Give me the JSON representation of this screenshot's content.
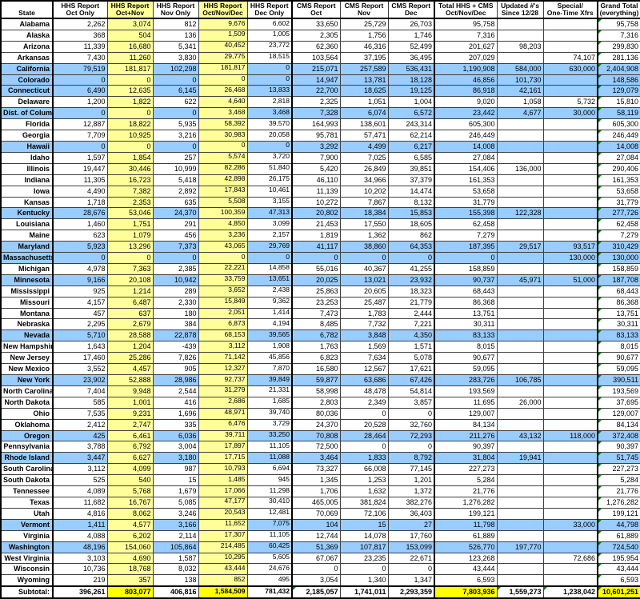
{
  "colors": {
    "pale_yellow": "#FFFF99",
    "highlight_blue": "#99CCFF",
    "subtotal_yellow": "#FFFF00",
    "error_indicator_green": "#008000"
  },
  "table": {
    "columns": [
      {
        "id": "state",
        "line1": "",
        "line2": "State"
      },
      {
        "id": "hhs_oct",
        "line1": "HHS Report",
        "line2": "Oct Only"
      },
      {
        "id": "hhs_octnov",
        "line1": "HHS Report",
        "line2": "Oct+Nov"
      },
      {
        "id": "hhs_nov",
        "line1": "HHS Report",
        "line2": "Nov Only"
      },
      {
        "id": "hhs_ond",
        "line1": "HHS Report",
        "line2": "Oct/Nov/Dec"
      },
      {
        "id": "hhs_dec",
        "line1": "HHS Report",
        "line2": "Dec Only"
      },
      {
        "id": "cms_oct",
        "line1": "CMS Report",
        "line2": "Oct"
      },
      {
        "id": "cms_nov",
        "line1": "CMS Report",
        "line2": "Nov"
      },
      {
        "id": "cms_dec",
        "line1": "CMS Report",
        "line2": "Dec"
      },
      {
        "id": "total",
        "line1": "Total HHS + CMS",
        "line2": "Oct/Nov/Dec"
      },
      {
        "id": "updated",
        "line1": "Updated #'s",
        "line2": "Since 12/28"
      },
      {
        "id": "special",
        "line1": "Special/",
        "line2": "One-Time Xfrs"
      },
      {
        "id": "grand",
        "line1": "Grand Total",
        "line2": "(everything)"
      }
    ],
    "rows": [
      {
        "state": "Alabama",
        "highlight": false,
        "values": [
          "2,262",
          "3,074",
          "812",
          "9,676",
          "6,602",
          "33,650",
          "25,729",
          "26,703",
          "95,758",
          "",
          "",
          "95,758"
        ]
      },
      {
        "state": "Alaska",
        "highlight": false,
        "values": [
          "368",
          "504",
          "136",
          "1,509",
          "1,005",
          "2,305",
          "1,756",
          "1,746",
          "7,316",
          "",
          "",
          "7,316"
        ]
      },
      {
        "state": "Arizona",
        "highlight": false,
        "values": [
          "11,339",
          "16,680",
          "5,341",
          "40,452",
          "23,772",
          "62,360",
          "46,316",
          "52,499",
          "201,627",
          "98,203",
          "",
          "299,830"
        ]
      },
      {
        "state": "Arkansas",
        "highlight": false,
        "values": [
          "7,430",
          "11,260",
          "3,830",
          "29,775",
          "18,515",
          "103,564",
          "37,195",
          "36,495",
          "207,029",
          "",
          "74,107",
          "281,136"
        ]
      },
      {
        "state": "California",
        "highlight": true,
        "values": [
          "79,519",
          "181,817",
          "102,298",
          "181,817",
          "0",
          "215,071",
          "257,589",
          "536,431",
          "1,190,908",
          "584,000",
          "630,000",
          "2,404,908"
        ]
      },
      {
        "state": "Colorado",
        "highlight": true,
        "values": [
          "0",
          "0",
          "0",
          "0",
          "0",
          "14,947",
          "13,781",
          "18,128",
          "46,856",
          "101,730",
          "",
          "148,586"
        ]
      },
      {
        "state": "Connecticut",
        "highlight": true,
        "values": [
          "6,490",
          "12,635",
          "6,145",
          "26,468",
          "13,833",
          "22,700",
          "18,625",
          "19,125",
          "86,918",
          "42,161",
          "",
          "129,079"
        ]
      },
      {
        "state": "Delaware",
        "highlight": false,
        "values": [
          "1,200",
          "1,822",
          "622",
          "4,640",
          "2,818",
          "2,325",
          "1,051",
          "1,004",
          "9,020",
          "1,058",
          "5,732",
          "15,810"
        ]
      },
      {
        "state": "Dist. of Colum.",
        "highlight": true,
        "values": [
          "0",
          "0",
          "0",
          "3,468",
          "3,468",
          "7,328",
          "6,074",
          "6,572",
          "23,442",
          "4,677",
          "30,000",
          "58,119"
        ]
      },
      {
        "state": "Florida",
        "highlight": false,
        "values": [
          "12,887",
          "18,822",
          "5,935",
          "58,392",
          "39,570",
          "164,993",
          "138,601",
          "243,314",
          "605,300",
          "",
          "",
          "605,300"
        ]
      },
      {
        "state": "Georgia",
        "highlight": false,
        "values": [
          "7,709",
          "10,925",
          "3,216",
          "30,983",
          "20,058",
          "95,781",
          "57,471",
          "62,214",
          "246,449",
          "",
          "",
          "246,449"
        ]
      },
      {
        "state": "Hawaii",
        "highlight": true,
        "values": [
          "0",
          "0",
          "0",
          "0",
          "0",
          "3,292",
          "4,499",
          "6,217",
          "14,008",
          "",
          "",
          "14,008"
        ]
      },
      {
        "state": "Idaho",
        "highlight": false,
        "values": [
          "1,597",
          "1,854",
          "257",
          "5,574",
          "3,720",
          "7,900",
          "7,025",
          "6,585",
          "27,084",
          "",
          "",
          "27,084"
        ]
      },
      {
        "state": "Illinois",
        "highlight": false,
        "values": [
          "19,447",
          "30,446",
          "10,999",
          "82,286",
          "51,840",
          "5,420",
          "26,849",
          "39,851",
          "154,406",
          "136,000",
          "",
          "290,406"
        ]
      },
      {
        "state": "Indiana",
        "highlight": false,
        "values": [
          "11,305",
          "16,723",
          "5,418",
          "42,898",
          "26,175",
          "46,110",
          "34,966",
          "37,379",
          "161,353",
          "",
          "",
          "161,353"
        ]
      },
      {
        "state": "Iowa",
        "highlight": false,
        "values": [
          "4,490",
          "7,382",
          "2,892",
          "17,843",
          "10,461",
          "11,139",
          "10,202",
          "14,474",
          "53,658",
          "",
          "",
          "53,658"
        ]
      },
      {
        "state": "Kansas",
        "highlight": false,
        "values": [
          "1,718",
          "2,353",
          "635",
          "5,508",
          "3,155",
          "10,272",
          "7,867",
          "8,132",
          "31,779",
          "",
          "",
          "31,779"
        ]
      },
      {
        "state": "Kentucky",
        "highlight": true,
        "values": [
          "28,676",
          "53,046",
          "24,370",
          "100,359",
          "47,313",
          "20,802",
          "18,384",
          "15,853",
          "155,398",
          "122,328",
          "",
          "277,726"
        ]
      },
      {
        "state": "Louisiana",
        "highlight": false,
        "values": [
          "1,460",
          "1,751",
          "291",
          "4,850",
          "3,099",
          "21,453",
          "17,550",
          "18,605",
          "62,458",
          "",
          "",
          "62,458"
        ]
      },
      {
        "state": "Maine",
        "highlight": false,
        "values": [
          "623",
          "1,079",
          "456",
          "3,236",
          "2,157",
          "1,819",
          "1,362",
          "862",
          "7,279",
          "",
          "",
          "7,279"
        ]
      },
      {
        "state": "Maryland",
        "highlight": true,
        "values": [
          "5,923",
          "13,296",
          "7,373",
          "43,065",
          "29,769",
          "41,117",
          "38,860",
          "64,353",
          "187,395",
          "29,517",
          "93,517",
          "310,429"
        ]
      },
      {
        "state": "Massachusetts",
        "highlight": true,
        "values": [
          "0",
          "0",
          "0",
          "0",
          "0",
          "0",
          "0",
          "0",
          "0",
          "",
          "130,000",
          "130,000"
        ]
      },
      {
        "state": "Michigan",
        "highlight": false,
        "values": [
          "4,978",
          "7,363",
          "2,385",
          "22,221",
          "14,858",
          "55,016",
          "40,367",
          "41,255",
          "158,859",
          "",
          "",
          "158,859"
        ]
      },
      {
        "state": "Minnesota",
        "highlight": true,
        "values": [
          "9,166",
          "20,108",
          "10,942",
          "33,759",
          "13,651",
          "20,025",
          "13,021",
          "23,932",
          "90,737",
          "45,971",
          "51,000",
          "187,708"
        ]
      },
      {
        "state": "Mississippi",
        "highlight": false,
        "values": [
          "925",
          "1,214",
          "289",
          "3,652",
          "2,438",
          "25,863",
          "20,605",
          "18,323",
          "68,443",
          "",
          "",
          "68,443"
        ]
      },
      {
        "state": "Missouri",
        "highlight": false,
        "values": [
          "4,157",
          "6,487",
          "2,330",
          "15,849",
          "9,362",
          "23,253",
          "25,487",
          "21,779",
          "86,368",
          "",
          "",
          "86,368"
        ]
      },
      {
        "state": "Montana",
        "highlight": false,
        "values": [
          "457",
          "637",
          "180",
          "2,051",
          "1,414",
          "7,473",
          "1,783",
          "2,444",
          "13,751",
          "",
          "",
          "13,751"
        ]
      },
      {
        "state": "Nebraska",
        "highlight": false,
        "values": [
          "2,295",
          "2,679",
          "384",
          "6,873",
          "4,194",
          "8,485",
          "7,732",
          "7,221",
          "30,311",
          "",
          "",
          "30,311"
        ]
      },
      {
        "state": "Nevada",
        "highlight": true,
        "values": [
          "5,710",
          "28,588",
          "22,878",
          "68,153",
          "39,565",
          "6,782",
          "3,848",
          "4,350",
          "83,133",
          "",
          "",
          "83,133"
        ]
      },
      {
        "state": "New Hampshire",
        "highlight": false,
        "values": [
          "1,643",
          "1,204",
          "-439",
          "3,112",
          "1,908",
          "1,763",
          "1,569",
          "1,571",
          "8,015",
          "",
          "",
          "8,015"
        ]
      },
      {
        "state": "New Jersey",
        "highlight": false,
        "values": [
          "17,460",
          "25,286",
          "7,826",
          "71,142",
          "45,856",
          "6,823",
          "7,634",
          "5,078",
          "90,677",
          "",
          "",
          "90,677"
        ]
      },
      {
        "state": "New Mexico",
        "highlight": false,
        "values": [
          "3,552",
          "4,457",
          "905",
          "12,327",
          "7,870",
          "16,580",
          "12,567",
          "17,621",
          "59,095",
          "",
          "",
          "59,095"
        ]
      },
      {
        "state": "New York",
        "highlight": true,
        "values": [
          "23,902",
          "52,888",
          "28,986",
          "92,737",
          "39,849",
          "59,877",
          "63,686",
          "67,426",
          "283,726",
          "106,785",
          "",
          "390,511"
        ]
      },
      {
        "state": "North Carolina",
        "highlight": false,
        "values": [
          "7,404",
          "9,948",
          "2,544",
          "31,279",
          "21,331",
          "58,998",
          "48,478",
          "54,814",
          "193,569",
          "",
          "",
          "193,569"
        ]
      },
      {
        "state": "North Dakota",
        "highlight": false,
        "values": [
          "585",
          "1,001",
          "416",
          "2,686",
          "1,685",
          "2,803",
          "2,349",
          "3,857",
          "11,695",
          "26,000",
          "",
          "37,695"
        ]
      },
      {
        "state": "Ohio",
        "highlight": false,
        "values": [
          "7,535",
          "9,231",
          "1,696",
          "48,971",
          "39,740",
          "80,036",
          "0",
          "0",
          "129,007",
          "",
          "",
          "129,007"
        ]
      },
      {
        "state": "Oklahoma",
        "highlight": false,
        "values": [
          "2,412",
          "2,747",
          "335",
          "6,476",
          "3,729",
          "24,370",
          "20,528",
          "32,760",
          "84,134",
          "",
          "",
          "84,134"
        ]
      },
      {
        "state": "Oregon",
        "highlight": true,
        "values": [
          "425",
          "6,461",
          "6,036",
          "39,711",
          "33,250",
          "70,808",
          "28,464",
          "72,293",
          "211,276",
          "43,132",
          "118,000",
          "372,408"
        ]
      },
      {
        "state": "Pennsylvania",
        "highlight": false,
        "values": [
          "3,788",
          "6,792",
          "3,004",
          "17,897",
          "11,105",
          "72,500",
          "0",
          "0",
          "90,397",
          "",
          "",
          "90,397"
        ]
      },
      {
        "state": "Rhode Island",
        "highlight": true,
        "values": [
          "3,447",
          "6,627",
          "3,180",
          "17,715",
          "11,088",
          "3,464",
          "1,833",
          "8,792",
          "31,804",
          "19,941",
          "",
          "51,745"
        ]
      },
      {
        "state": "South Carolina",
        "highlight": false,
        "values": [
          "3,112",
          "4,099",
          "987",
          "10,793",
          "6,694",
          "73,327",
          "66,008",
          "77,145",
          "227,273",
          "",
          "",
          "227,273"
        ]
      },
      {
        "state": "South Dakota",
        "highlight": false,
        "values": [
          "525",
          "540",
          "15",
          "1,485",
          "945",
          "1,345",
          "1,253",
          "1,201",
          "5,284",
          "",
          "",
          "5,284"
        ]
      },
      {
        "state": "Tennessee",
        "highlight": false,
        "values": [
          "4,089",
          "5,768",
          "1,679",
          "17,066",
          "11,298",
          "1,706",
          "1,632",
          "1,372",
          "21,776",
          "",
          "",
          "21,776"
        ]
      },
      {
        "state": "Texas",
        "highlight": false,
        "values": [
          "11,682",
          "16,767",
          "5,085",
          "47,177",
          "30,410",
          "465,005",
          "381,824",
          "382,276",
          "1,276,282",
          "",
          "",
          "1,276,282"
        ]
      },
      {
        "state": "Utah",
        "highlight": false,
        "values": [
          "4,816",
          "8,062",
          "3,246",
          "20,543",
          "12,481",
          "70,069",
          "72,106",
          "36,403",
          "199,121",
          "",
          "",
          "199,121"
        ]
      },
      {
        "state": "Vermont",
        "highlight": true,
        "values": [
          "1,411",
          "4,577",
          "3,166",
          "11,652",
          "7,075",
          "104",
          "15",
          "27",
          "11,798",
          "",
          "33,000",
          "44,798"
        ]
      },
      {
        "state": "Virginia",
        "highlight": false,
        "values": [
          "4,088",
          "6,202",
          "2,114",
          "17,307",
          "11,105",
          "12,744",
          "14,078",
          "17,760",
          "61,889",
          "",
          "",
          "61,889"
        ]
      },
      {
        "state": "Washington",
        "highlight": true,
        "values": [
          "48,196",
          "154,060",
          "105,864",
          "214,485",
          "60,425",
          "51,369",
          "107,817",
          "153,099",
          "526,770",
          "197,770",
          "",
          "724,540"
        ]
      },
      {
        "state": "West Virginia",
        "highlight": false,
        "values": [
          "3,103",
          "4,690",
          "1,587",
          "10,295",
          "5,605",
          "67,067",
          "23,235",
          "22,671",
          "123,268",
          "",
          "72,686",
          "195,954"
        ]
      },
      {
        "state": "Wisconsin",
        "highlight": false,
        "values": [
          "10,736",
          "18,768",
          "8,032",
          "43,444",
          "24,676",
          "0",
          "0",
          "0",
          "43,444",
          "",
          "",
          "43,444"
        ]
      },
      {
        "state": "Wyoming",
        "highlight": false,
        "values": [
          "219",
          "357",
          "138",
          "852",
          "495",
          "3,054",
          "1,340",
          "1,347",
          "6,593",
          "",
          "",
          "6,593"
        ]
      }
    ],
    "subtotal": {
      "label": "Subtotal:",
      "values": [
        "396,261",
        "803,077",
        "406,816",
        "1,584,509",
        "781,432",
        "2,185,057",
        "1,741,011",
        "2,293,359",
        "7,803,936",
        "1,559,273",
        "1,238,042",
        "10,601,251"
      ]
    }
  }
}
